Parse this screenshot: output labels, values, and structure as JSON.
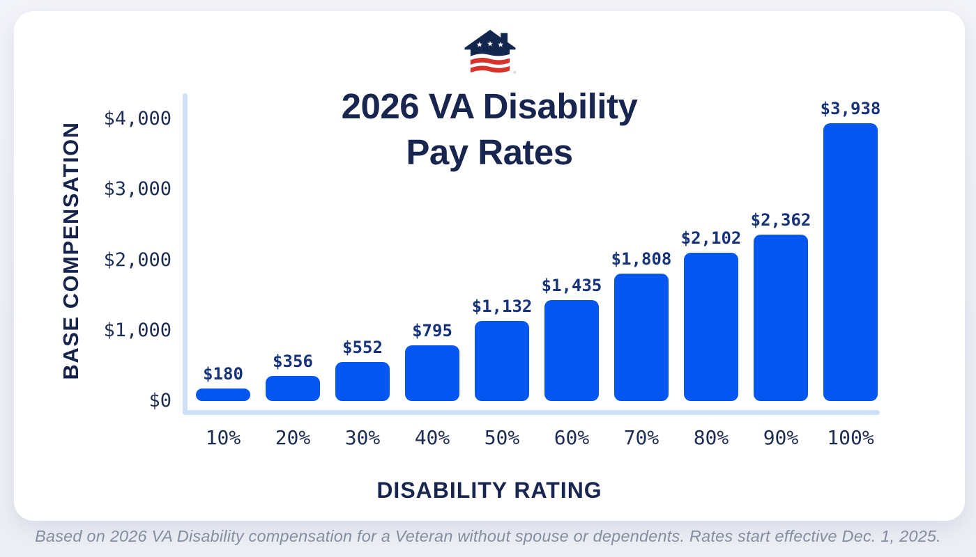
{
  "logo": {
    "name": "veterans-house-logo",
    "registered_mark": "®",
    "stars": 3,
    "navy": "#13264d",
    "red": "#d8322d",
    "white": "#ffffff"
  },
  "chart_data": {
    "type": "bar",
    "title": "2026 VA Disability Pay Rates",
    "title_lines": [
      "2026 VA Disability",
      "Pay Rates"
    ],
    "xlabel": "DISABILITY RATING",
    "ylabel": "BASE COMPENSATION",
    "categories": [
      "10%",
      "20%",
      "30%",
      "40%",
      "50%",
      "60%",
      "70%",
      "80%",
      "90%",
      "100%"
    ],
    "values": [
      180,
      356,
      552,
      795,
      1132,
      1435,
      1808,
      2102,
      2362,
      3938
    ],
    "value_labels": [
      "$180",
      "$356",
      "$552",
      "$795",
      "$1,132",
      "$1,435",
      "$1,808",
      "$2,102",
      "$2,362",
      "$3,938"
    ],
    "y_ticks": [
      {
        "value": 4000,
        "label": "$4,000"
      },
      {
        "value": 3000,
        "label": "$3,000"
      },
      {
        "value": 2000,
        "label": "$2,000"
      },
      {
        "value": 1000,
        "label": "$1,000"
      },
      {
        "value": 0,
        "label": "$0"
      }
    ],
    "ylim": [
      0,
      4000
    ],
    "grid": false,
    "legend": null,
    "bar_color": "#0356ef",
    "axis_line_color": "#cfe1f7",
    "tick_label_color": "#1c2c52",
    "value_label_color": "#16337a"
  },
  "footer": {
    "text": "Based on 2026 VA Disability compensation for a Veteran without spouse or dependents. Rates start effective Dec. 1, 2025."
  }
}
